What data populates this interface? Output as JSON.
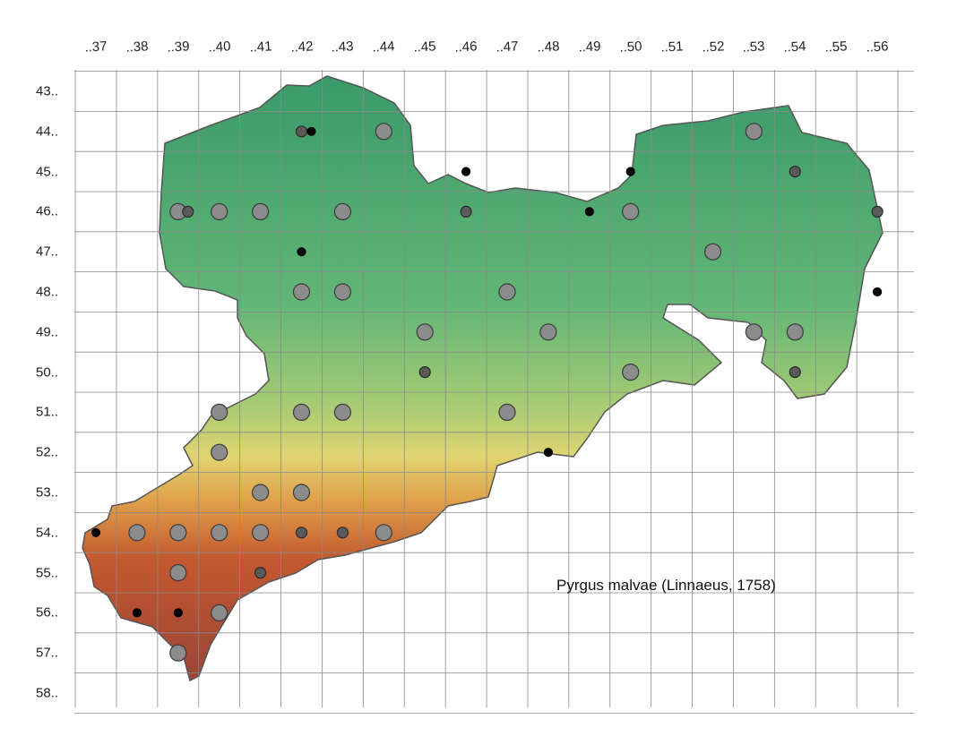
{
  "map": {
    "species_title": "Pyrgus malvae (Linnaeus, 1758)",
    "columns": [
      "..37",
      "..38",
      "..39",
      "..40",
      "..41",
      "..42",
      "..43",
      "..44",
      "..45",
      "..46",
      "..47",
      "..48",
      "..49",
      "..50",
      "..51",
      "..52",
      "..53",
      "..54",
      "..55",
      "..56"
    ],
    "rows": [
      "43..",
      "44..",
      "45..",
      "46..",
      "47..",
      "48..",
      "49..",
      "50..",
      "51..",
      "52..",
      "53..",
      "54..",
      "55..",
      "56..",
      "57..",
      "58.."
    ],
    "marker_styles": {
      "large": {
        "fill": "#8c8c8c",
        "stroke": "#3a3a3a"
      },
      "medium": {
        "fill": "#5a5a5a",
        "stroke": "#2a2a2a"
      },
      "small": {
        "fill": "#050505",
        "stroke": "#000000"
      }
    },
    "relief_colors": [
      "#3a9a6a",
      "#62b676",
      "#a9cc74",
      "#e1d472",
      "#e0a24a",
      "#c3582f",
      "#9b4538"
    ],
    "records": [
      {
        "col": "..39",
        "row": "46..",
        "type": "large"
      },
      {
        "col": "..39",
        "row": "46..",
        "type": "medium"
      },
      {
        "col": "..40",
        "row": "46..",
        "type": "large"
      },
      {
        "col": "..41",
        "row": "46..",
        "type": "large"
      },
      {
        "col": "..42",
        "row": "44..",
        "type": "medium"
      },
      {
        "col": "..42",
        "row": "44..",
        "type": "small"
      },
      {
        "col": "..42",
        "row": "47..",
        "type": "small"
      },
      {
        "col": "..42",
        "row": "48..",
        "type": "large"
      },
      {
        "col": "..43",
        "row": "46..",
        "type": "large"
      },
      {
        "col": "..43",
        "row": "48..",
        "type": "large"
      },
      {
        "col": "..44",
        "row": "44..",
        "type": "large"
      },
      {
        "col": "..46",
        "row": "45..",
        "type": "small"
      },
      {
        "col": "..46",
        "row": "46..",
        "type": "medium"
      },
      {
        "col": "..47",
        "row": "48..",
        "type": "large"
      },
      {
        "col": "..48",
        "row": "49..",
        "type": "large"
      },
      {
        "col": "..49",
        "row": "46..",
        "type": "small"
      },
      {
        "col": "..50",
        "row": "45..",
        "type": "small"
      },
      {
        "col": "..50",
        "row": "46..",
        "type": "large"
      },
      {
        "col": "..52",
        "row": "47..",
        "type": "large"
      },
      {
        "col": "..53",
        "row": "44..",
        "type": "large"
      },
      {
        "col": "..54",
        "row": "45..",
        "type": "medium"
      },
      {
        "col": "..56",
        "row": "46..",
        "type": "medium"
      },
      {
        "col": "..56",
        "row": "48..",
        "type": "small"
      },
      {
        "col": "..42",
        "row": "51..",
        "type": "large"
      },
      {
        "col": "..43",
        "row": "51..",
        "type": "large"
      },
      {
        "col": "..40",
        "row": "51..",
        "type": "large"
      },
      {
        "col": "..40",
        "row": "52..",
        "type": "large"
      },
      {
        "col": "..41",
        "row": "53..",
        "type": "large"
      },
      {
        "col": "..42",
        "row": "53..",
        "type": "large"
      },
      {
        "col": "..45",
        "row": "49..",
        "type": "large"
      },
      {
        "col": "..45",
        "row": "50..",
        "type": "medium"
      },
      {
        "col": "..47",
        "row": "51..",
        "type": "large"
      },
      {
        "col": "..48",
        "row": "52..",
        "type": "small"
      },
      {
        "col": "..50",
        "row": "50..",
        "type": "large"
      },
      {
        "col": "..53",
        "row": "49..",
        "type": "large"
      },
      {
        "col": "..54",
        "row": "49..",
        "type": "large"
      },
      {
        "col": "..54",
        "row": "50..",
        "type": "medium"
      },
      {
        "col": "..37",
        "row": "54..",
        "type": "small"
      },
      {
        "col": "..38",
        "row": "54..",
        "type": "large"
      },
      {
        "col": "..38",
        "row": "56..",
        "type": "small"
      },
      {
        "col": "..39",
        "row": "54..",
        "type": "large"
      },
      {
        "col": "..39",
        "row": "55..",
        "type": "large"
      },
      {
        "col": "..39",
        "row": "56..",
        "type": "small"
      },
      {
        "col": "..39",
        "row": "57..",
        "type": "large"
      },
      {
        "col": "..40",
        "row": "54..",
        "type": "large"
      },
      {
        "col": "..40",
        "row": "56..",
        "type": "large"
      },
      {
        "col": "..41",
        "row": "54..",
        "type": "large"
      },
      {
        "col": "..41",
        "row": "55..",
        "type": "medium"
      },
      {
        "col": "..42",
        "row": "54..",
        "type": "medium"
      },
      {
        "col": "..43",
        "row": "54..",
        "type": "medium"
      },
      {
        "col": "..44",
        "row": "54..",
        "type": "large"
      }
    ]
  }
}
